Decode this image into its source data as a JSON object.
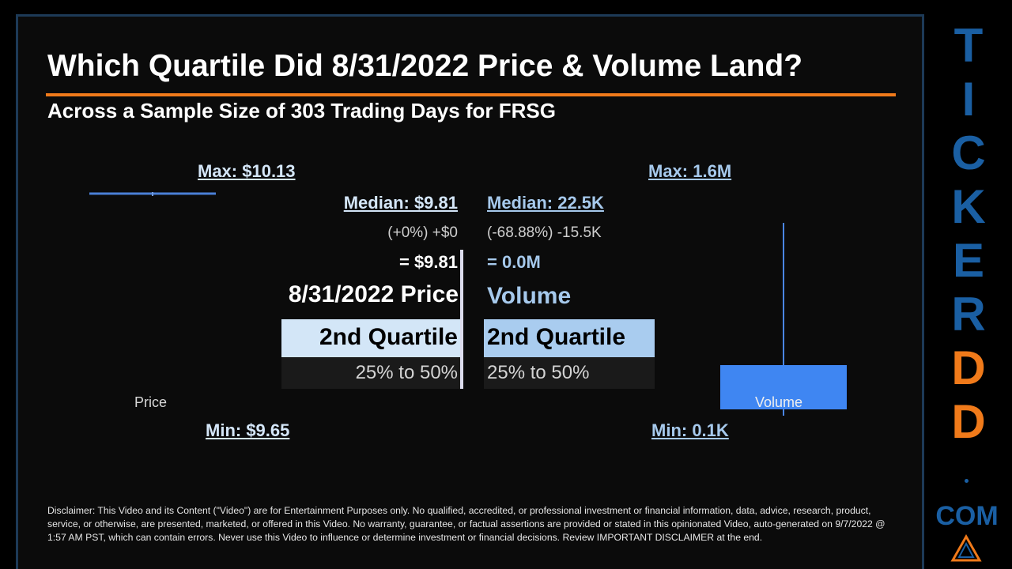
{
  "title": "Which Quartile Did 8/31/2022 Price & Volume Land?",
  "subtitle": "Across a Sample Size of 303 Trading Days for FRSG",
  "price": {
    "max_label": "Max: $10.13",
    "median_label": "Median: $9.81",
    "change_label": "(+0%) +$0",
    "equals_label": "= $9.81",
    "date_label": "8/31/2022 Price",
    "quartile_label": "2nd Quartile",
    "range_label": "25% to 50%",
    "min_label": "Min: $9.65",
    "axis_label": "Price"
  },
  "volume": {
    "max_label": "Max: 1.6M",
    "median_label": "Median: 22.5K",
    "change_label": "(-68.88%) -15.5K",
    "equals_label": "= 0.0M",
    "title_label": "Volume",
    "quartile_label": "2nd Quartile",
    "range_label": "25% to 50%",
    "min_label": "Min: 0.1K",
    "axis_label": "Volume"
  },
  "chart_data": [
    {
      "type": "box",
      "series": "Price",
      "unit": "$",
      "min": 9.65,
      "max": 10.13,
      "median": 9.81,
      "value": 9.81,
      "quartile": 2
    },
    {
      "type": "box",
      "series": "Volume",
      "min": 100,
      "max": 1600000,
      "median": 22500,
      "value": 7000,
      "quartile": 2
    }
  ],
  "brand": {
    "letters": [
      "T",
      "I",
      "C",
      "K",
      "E",
      "R",
      "D",
      "D"
    ],
    "dot": ".",
    "com": "COM",
    "blue": "#1a5fa3",
    "orange": "#f07a1a",
    "logo": "warning-triangle-icon"
  },
  "colors": {
    "accent_rule": "#f07a1a",
    "price": "#4a7fd6",
    "volume_box": "#3f86f2"
  },
  "disclaimer": "Disclaimer: This Video and its Content (\"Video\") are for Entertainment Purposes only. No qualified, accredited, or professional investment or financial information, data, advice, research, product, service, or otherwise, are presented, marketed, or offered in this Video. No warranty, guarantee, or factual assertions are provided or stated in this opinionated Video, auto-generated on 9/7/2022 @ 1:57 AM PST, which can contain errors. Never use this Video to influence or determine investment or financial decisions. Review IMPORTANT DISCLAIMER at the end."
}
